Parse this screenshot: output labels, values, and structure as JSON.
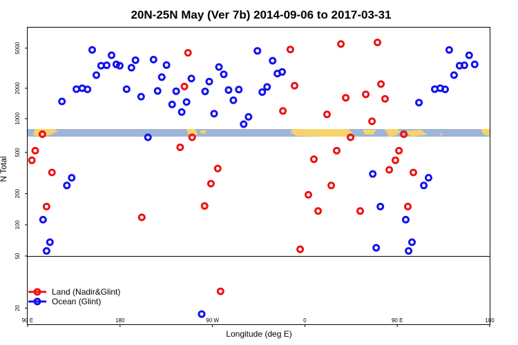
{
  "chart_data": {
    "type": "scatter",
    "title": "20N-25N May (Ver 7b)   2014-09-06 to 2017-03-31",
    "xlabel": "Longitude (deg E)",
    "ylabel": "N Total",
    "x_ticks": [
      {
        "value": 90,
        "label": "90 E"
      },
      {
        "value": 180,
        "label": "180"
      },
      {
        "value": 270,
        "label": "90 W"
      },
      {
        "value": 360,
        "label": "0"
      },
      {
        "value": 450,
        "label": "90 E"
      },
      {
        "value": 540,
        "label": "180"
      }
    ],
    "xlim": [
      90,
      540
    ],
    "panels": [
      {
        "name": "upper",
        "scale": "log",
        "ylim": [
          800,
          8000
        ],
        "ticks": [
          {
            "value": 1000,
            "label": "1000"
          },
          {
            "value": 2000,
            "label": "2000"
          },
          {
            "value": 5000,
            "label": "5000"
          }
        ]
      },
      {
        "name": "middle",
        "scale": "log",
        "ylim": [
          50,
          700
        ],
        "ticks": [
          {
            "value": 50,
            "label": "50"
          },
          {
            "value": 100,
            "label": "100"
          },
          {
            "value": 200,
            "label": "200"
          },
          {
            "value": 500,
            "label": "500"
          }
        ]
      },
      {
        "name": "lower",
        "scale": "log",
        "ylim": [
          15,
          50
        ],
        "ticks": [
          {
            "value": 20,
            "label": "20"
          }
        ]
      }
    ],
    "land_strip_colors": {
      "ocean": "#9db5d6",
      "land": "#f6d36b"
    },
    "series": [
      {
        "name": "Land (Nadir&Glint)",
        "color": "#ee1111",
        "points": [
          [
            94.1,
            420
          ],
          [
            97.4,
            520
          ],
          [
            104.4,
            750
          ],
          [
            108.4,
            150
          ],
          [
            113.7,
            320
          ],
          [
            201.2,
            118
          ],
          [
            238.6,
            560
          ],
          [
            242.7,
            2080
          ],
          [
            246.2,
            4500
          ],
          [
            250.2,
            700
          ],
          [
            262.3,
            152
          ],
          [
            268.5,
            250
          ],
          [
            275.2,
            350
          ],
          [
            277.9,
            27
          ],
          [
            345.9,
            4850
          ],
          [
            350.0,
            2120
          ],
          [
            355.4,
            58
          ],
          [
            338.6,
            1190
          ],
          [
            363.4,
            195
          ],
          [
            368.8,
            430
          ],
          [
            372.9,
            136
          ],
          [
            381.6,
            1100
          ],
          [
            385.7,
            240
          ],
          [
            391.0,
            520
          ],
          [
            395.1,
            5500
          ],
          [
            399.8,
            1610
          ],
          [
            404.5,
            700
          ],
          [
            413.9,
            136
          ],
          [
            419.3,
            1740
          ],
          [
            425.4,
            940
          ],
          [
            430.7,
            5700
          ],
          [
            434.1,
            2200
          ],
          [
            438.1,
            1570
          ],
          [
            442.2,
            340
          ],
          [
            448.2,
            420
          ],
          [
            451.6,
            520
          ],
          [
            456.3,
            750
          ],
          [
            460.3,
            150
          ],
          [
            465.7,
            320
          ]
        ]
      },
      {
        "name": "Ocean (Glint)",
        "color": "#1111ee",
        "points": [
          [
            105.0,
            112
          ],
          [
            108.4,
            56
          ],
          [
            111.7,
            68
          ],
          [
            123.4,
            1480
          ],
          [
            128.2,
            240
          ],
          [
            132.9,
            285
          ],
          [
            137.5,
            1960
          ],
          [
            143.2,
            2000
          ],
          [
            148.3,
            1950
          ],
          [
            152.9,
            4800
          ],
          [
            156.9,
            2700
          ],
          [
            161.6,
            3350
          ],
          [
            167.0,
            3380
          ],
          [
            171.7,
            4250
          ],
          [
            176.4,
            3450
          ],
          [
            179.7,
            3350
          ],
          [
            186.4,
            1960
          ],
          [
            191.1,
            3200
          ],
          [
            195.1,
            3800
          ],
          [
            200.5,
            1650
          ],
          [
            207.2,
            700
          ],
          [
            212.6,
            3850
          ],
          [
            216.6,
            1880
          ],
          [
            220.6,
            2580
          ],
          [
            225.3,
            3400
          ],
          [
            230.7,
            1380
          ],
          [
            234.7,
            1870
          ],
          [
            240.1,
            1160
          ],
          [
            244.8,
            1460
          ],
          [
            249.5,
            2500
          ],
          [
            259.5,
            18
          ],
          [
            262.9,
            1860
          ],
          [
            266.9,
            2330
          ],
          [
            271.6,
            1120
          ],
          [
            276.3,
            3250
          ],
          [
            281.0,
            2750
          ],
          [
            285.7,
            1920
          ],
          [
            290.4,
            1520
          ],
          [
            295.7,
            1940
          ],
          [
            300.4,
            880
          ],
          [
            305.1,
            1040
          ],
          [
            313.8,
            4700
          ],
          [
            318.5,
            1830
          ],
          [
            323.2,
            2060
          ],
          [
            328.6,
            3750
          ],
          [
            333.2,
            2800
          ],
          [
            337.9,
            2900
          ],
          [
            426.1,
            310
          ],
          [
            429.5,
            60
          ],
          [
            433.5,
            150
          ],
          [
            471.1,
            1440
          ],
          [
            475.8,
            240
          ],
          [
            480.5,
            285
          ],
          [
            486.5,
            1960
          ],
          [
            491.9,
            2000
          ],
          [
            496.6,
            1950
          ],
          [
            500.6,
            4800
          ],
          [
            505.3,
            2700
          ],
          [
            510.7,
            3350
          ],
          [
            515.4,
            3380
          ],
          [
            520.0,
            4250
          ],
          [
            525.4,
            3450
          ],
          [
            458.3,
            112
          ],
          [
            461.0,
            56
          ],
          [
            464.3,
            68
          ]
        ]
      }
    ]
  }
}
